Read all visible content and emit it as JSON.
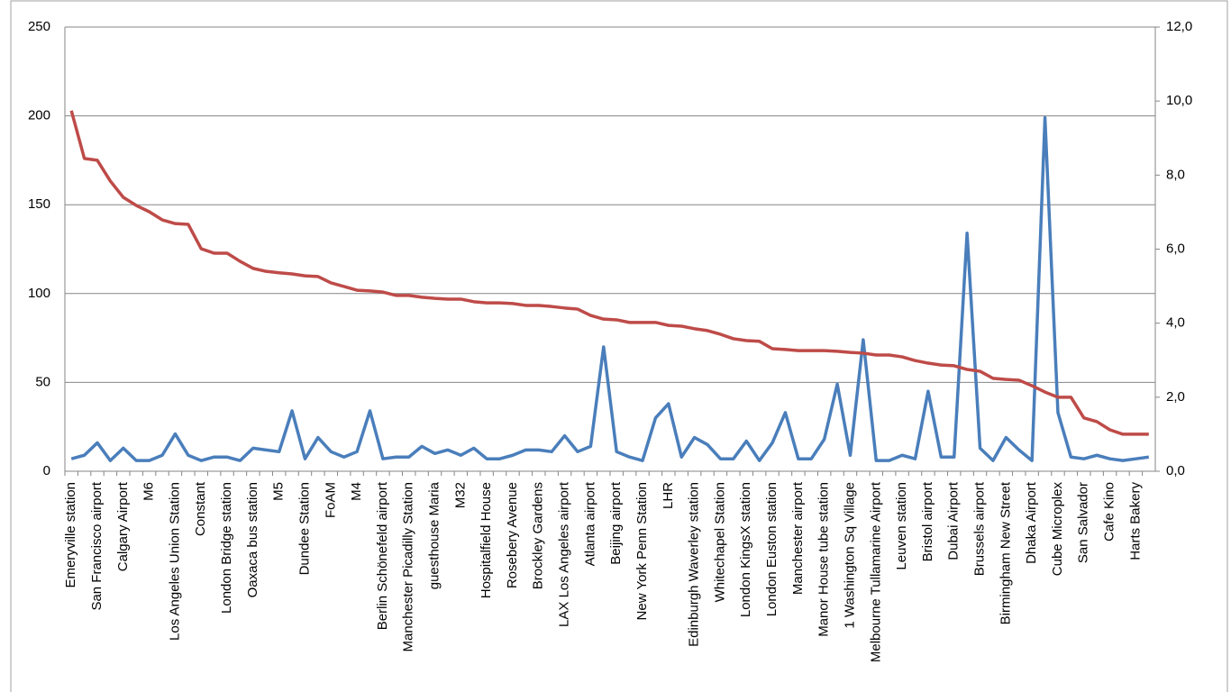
{
  "chart_data": {
    "type": "line",
    "categories": [
      "Emeryville station",
      null,
      "San Francisco airport",
      null,
      "Calgary Airport",
      null,
      "M6",
      null,
      "Los Angeles Union Station",
      null,
      "Constant",
      null,
      "London Bridge station",
      null,
      "Oaxaca bus station",
      null,
      "M5",
      null,
      "Dundee Station",
      null,
      "FoAM",
      null,
      "M4",
      null,
      "Berlin Schönefeld airport",
      null,
      "Manchester Picadilly Station",
      null,
      "guesthouse Maria",
      null,
      "M32",
      null,
      "Hospitalfield House",
      null,
      "Rosebery Avenue",
      null,
      "Brockley Gardens",
      null,
      "LAX Los Angeles airport",
      null,
      "Atlanta airport",
      null,
      "Beijing airport",
      null,
      "New York Penn Station",
      null,
      "LHR",
      null,
      "Edinburgh Waverley station",
      null,
      "Whitechapel Station",
      null,
      "London KingsX station",
      null,
      "London Euston station",
      null,
      "Manchester airport",
      null,
      "Manor House tube station",
      null,
      "1 Washington Sq Village",
      null,
      "Melbourne Tullamarine Airport",
      null,
      "Leuven station",
      null,
      "Bristol airport",
      null,
      "Dubai Airport",
      null,
      "Brussels airport",
      null,
      "Birmingham New Street",
      null,
      "Dhaka Airport",
      null,
      "Cube Microplex",
      null,
      "San Salvador",
      null,
      "Cafe Kino",
      null,
      "Harts Bakery",
      null
    ],
    "series": [
      {
        "color": "#4a7ebb",
        "axis": "y",
        "values": [
          7,
          9,
          16,
          6,
          13,
          6,
          6,
          9,
          21,
          9,
          6,
          8,
          8,
          6,
          13,
          12,
          11,
          34,
          7,
          19,
          11,
          8,
          11,
          34,
          7,
          8,
          8,
          14,
          10,
          12,
          9,
          13,
          7,
          7,
          9,
          12,
          12,
          11,
          20,
          11,
          14,
          70,
          11,
          8,
          6,
          30,
          38,
          8,
          19,
          15,
          7,
          7,
          17,
          6,
          16,
          33,
          7,
          7,
          18,
          49,
          9,
          74,
          6,
          6,
          9,
          7,
          45,
          8,
          8,
          134,
          13,
          6,
          19,
          12,
          6,
          199,
          33,
          8,
          7,
          9,
          7,
          6,
          7,
          8
        ]
      },
      {
        "color": "#be4b48",
        "axis": "y2",
        "values": [
          9.74,
          8.45,
          8.4,
          7.84,
          7.4,
          7.18,
          7.01,
          6.79,
          6.69,
          6.67,
          6.01,
          5.89,
          5.89,
          5.67,
          5.48,
          5.4,
          5.36,
          5.33,
          5.28,
          5.26,
          5.09,
          4.99,
          4.89,
          4.87,
          4.84,
          4.75,
          4.75,
          4.7,
          4.67,
          4.65,
          4.65,
          4.58,
          4.55,
          4.55,
          4.53,
          4.48,
          4.48,
          4.45,
          4.41,
          4.38,
          4.21,
          4.11,
          4.09,
          4.02,
          4.02,
          4.02,
          3.94,
          3.92,
          3.85,
          3.8,
          3.7,
          3.58,
          3.53,
          3.51,
          3.31,
          3.29,
          3.26,
          3.26,
          3.26,
          3.24,
          3.21,
          3.19,
          3.14,
          3.14,
          3.09,
          2.99,
          2.92,
          2.87,
          2.85,
          2.75,
          2.7,
          2.51,
          2.48,
          2.46,
          2.31,
          2.14,
          2.0,
          2.0,
          1.44,
          1.34,
          1.12,
          1.0,
          1.0,
          1.0
        ]
      }
    ],
    "ylim": [
      0,
      250
    ],
    "yticks": [
      0,
      50,
      100,
      150,
      200,
      250
    ],
    "y2lim": [
      0,
      12
    ],
    "y2ticks": [
      {
        "value": 0,
        "label": "0,0"
      },
      {
        "value": 2,
        "label": "2,0"
      },
      {
        "value": 4,
        "label": "4,0"
      },
      {
        "value": 6,
        "label": "6,0"
      },
      {
        "value": 8,
        "label": "8,0"
      },
      {
        "value": 10,
        "label": "10,0"
      },
      {
        "value": 12,
        "label": "12,0"
      }
    ],
    "grid": true
  }
}
